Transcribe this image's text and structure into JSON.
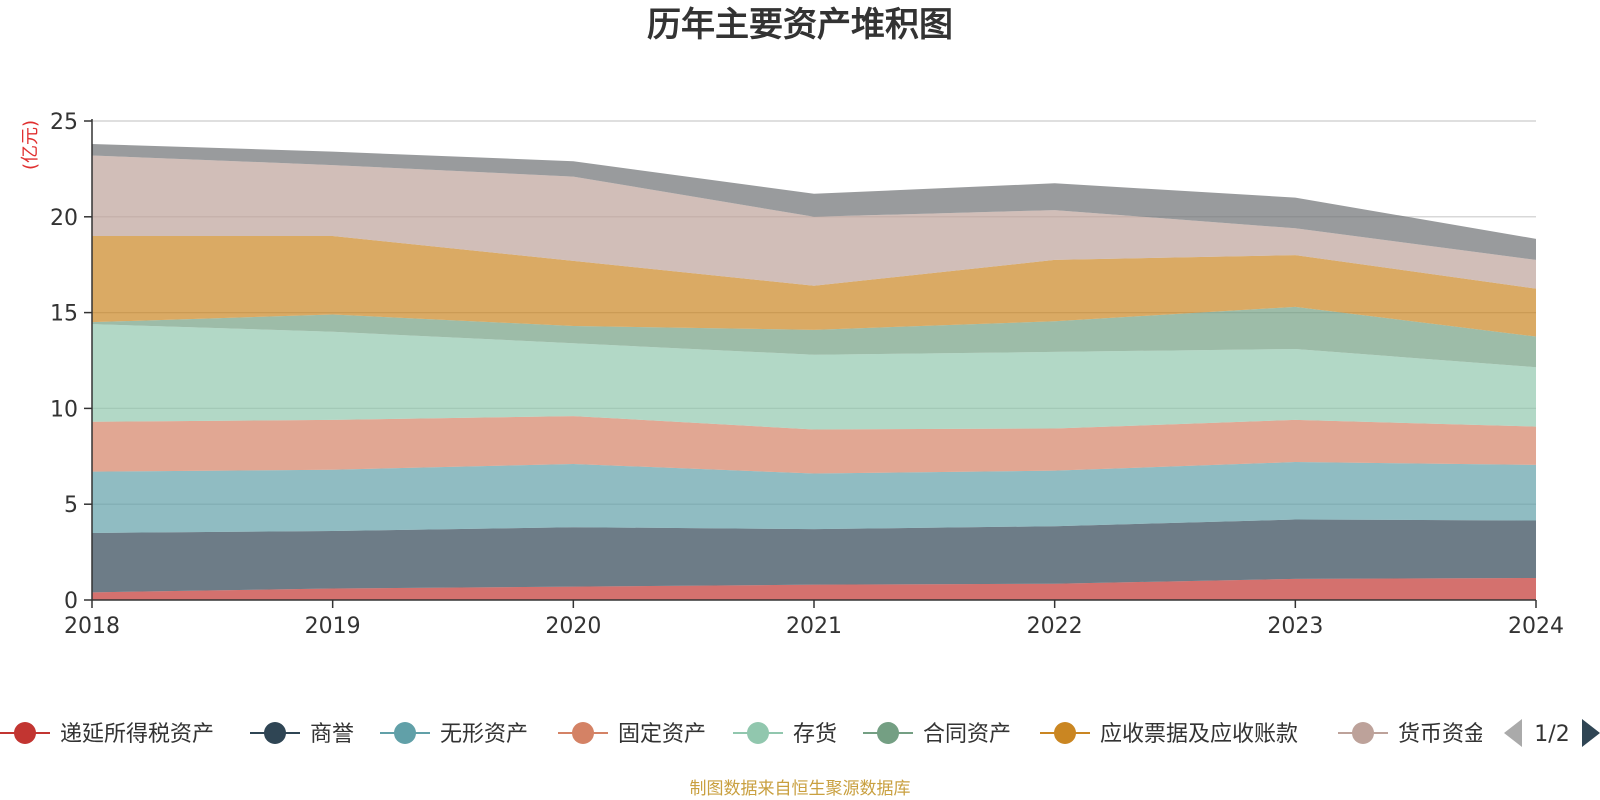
{
  "chart_data": {
    "type": "area",
    "title": "历年主要资产堆积图",
    "ylabel": "(亿元)",
    "x": [
      "2018",
      "2019",
      "2020",
      "2021",
      "2022",
      "2023",
      "2024"
    ],
    "ylim": [
      0,
      25
    ],
    "yticks": [
      0,
      5,
      10,
      15,
      20,
      25
    ],
    "stacked": true,
    "grid": true,
    "legend_position": "bottom",
    "series": [
      {
        "name": "递延所得税资产",
        "color": "#c23531",
        "values": [
          0.4,
          0.6,
          0.7,
          0.8,
          0.85,
          1.1,
          1.15
        ]
      },
      {
        "name": "商誉",
        "color": "#2f4554",
        "values": [
          3.1,
          3.0,
          3.1,
          2.9,
          3.0,
          3.1,
          3.0
        ]
      },
      {
        "name": "无形资产",
        "color": "#61a0a8",
        "values": [
          3.2,
          3.2,
          3.3,
          2.9,
          2.9,
          3.0,
          2.9
        ]
      },
      {
        "name": "固定资产",
        "color": "#d48265",
        "values": [
          2.6,
          2.6,
          2.5,
          2.3,
          2.2,
          2.2,
          2.0
        ]
      },
      {
        "name": "存货",
        "color": "#91c7ae",
        "values": [
          5.1,
          4.6,
          3.8,
          3.9,
          4.0,
          3.7,
          3.1
        ]
      },
      {
        "name": "合同资产",
        "color": "#749f83",
        "values": [
          0.1,
          0.9,
          0.9,
          1.3,
          1.6,
          2.2,
          1.6
        ]
      },
      {
        "name": "应收票据及应收账款",
        "color": "#ca8622",
        "values": [
          4.5,
          4.1,
          3.4,
          2.3,
          3.2,
          2.7,
          2.5
        ]
      },
      {
        "name": "货币资金",
        "color": "#bda29a",
        "values": [
          4.2,
          3.7,
          4.4,
          3.6,
          2.6,
          1.4,
          1.5
        ]
      },
      {
        "name": "",
        "color": "#6e7074",
        "values": [
          0.6,
          0.7,
          0.8,
          1.2,
          1.4,
          1.6,
          1.1
        ]
      }
    ],
    "legend_page": "1/2",
    "legend_visible_chars": {
      "货币资金": "货币资金"
    }
  },
  "source_text": "制图数据来自恒生聚源数据库"
}
